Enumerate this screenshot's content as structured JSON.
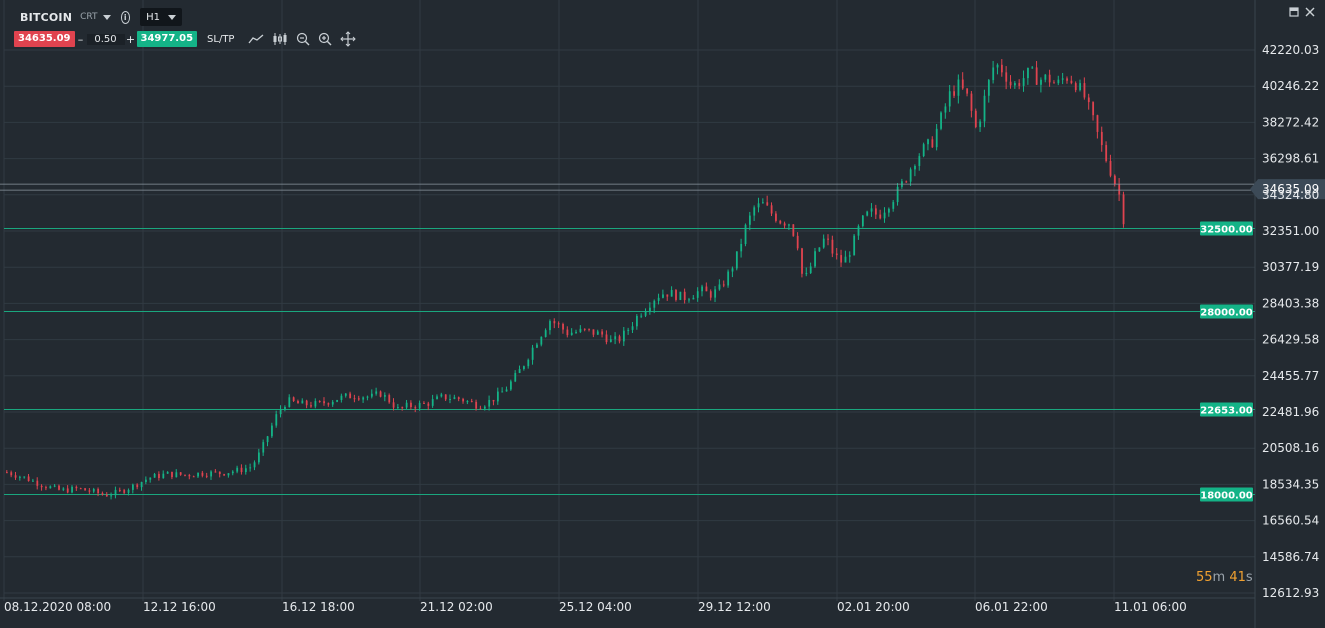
{
  "symbol": {
    "name": "BITCOIN",
    "type": "CRT",
    "timeframe": "H1"
  },
  "trade": {
    "sell_price": "34635.09",
    "quantity": "0.50",
    "buy_price": "34977.05",
    "minus": "–",
    "plus": "+",
    "sltp_label": "SL/TP"
  },
  "icons": [
    "line-chart-icon",
    "candles-icon",
    "zoom-out-icon",
    "zoom-in-icon",
    "crosshair-icon",
    "minimize-icon",
    "close-icon",
    "info-icon",
    "dropdown-caret-icon"
  ],
  "timer": {
    "minutes": "55",
    "m_unit": "m",
    "seconds": "41",
    "s_unit": "s"
  },
  "colors": {
    "background": "#232a31",
    "grid": "#313a42",
    "up": "#14b387",
    "down": "#e0434f",
    "level": "#1aa67e",
    "axis_text": "#e6e9ec",
    "timer": "#f0a030"
  },
  "chart_data": {
    "type": "candlestick",
    "title": "",
    "ylim": [
      12612.93,
      43000
    ],
    "y_ticks": [
      "42220.03",
      "40246.22",
      "38272.42",
      "36298.61",
      "34324.80",
      "32351.00",
      "30377.19",
      "28403.38",
      "26429.58",
      "24455.77",
      "22481.96",
      "20508.16",
      "18534.35",
      "16560.54",
      "14586.74",
      "12612.93"
    ],
    "x_ticks": [
      "08.12.2020 08:00",
      "12.12 16:00",
      "16.12 18:00",
      "21.12 02:00",
      "25.12 04:00",
      "29.12 12:00",
      "02.01 20:00",
      "06.01 22:00",
      "11.01 06:00"
    ],
    "current_price": {
      "value": 34635.09,
      "label": "34635.09"
    },
    "levels": [
      {
        "value": 32500,
        "label": "32500.00"
      },
      {
        "value": 28000,
        "label": "28000.00"
      },
      {
        "value": 22653,
        "label": "22653.00"
      },
      {
        "value": 18000,
        "label": "18000.00"
      }
    ],
    "price_path": [
      [
        0,
        19200
      ],
      [
        4,
        18900
      ],
      [
        8,
        18500
      ],
      [
        12,
        18200
      ],
      [
        16,
        18300
      ],
      [
        20,
        18100
      ],
      [
        22,
        17950
      ],
      [
        25,
        18100
      ],
      [
        28,
        18400
      ],
      [
        32,
        18900
      ],
      [
        36,
        19100
      ],
      [
        40,
        19050
      ],
      [
        44,
        19150
      ],
      [
        48,
        19150
      ],
      [
        52,
        19300
      ],
      [
        55,
        19500
      ],
      [
        57,
        20300
      ],
      [
        59,
        21400
      ],
      [
        61,
        22500
      ],
      [
        63,
        23100
      ],
      [
        66,
        22900
      ],
      [
        70,
        22900
      ],
      [
        74,
        23200
      ],
      [
        78,
        23400
      ],
      [
        82,
        23300
      ],
      [
        84,
        23500
      ],
      [
        86,
        23100
      ],
      [
        88,
        22600
      ],
      [
        90,
        22800
      ],
      [
        94,
        22900
      ],
      [
        98,
        23300
      ],
      [
        102,
        23200
      ],
      [
        104,
        23000
      ],
      [
        106,
        22850
      ],
      [
        108,
        23000
      ],
      [
        110,
        23300
      ],
      [
        112,
        23700
      ],
      [
        114,
        24300
      ],
      [
        116,
        25000
      ],
      [
        118,
        25900
      ],
      [
        120,
        26700
      ],
      [
        122,
        27500
      ],
      [
        124,
        27200
      ],
      [
        126,
        26800
      ],
      [
        130,
        26900
      ],
      [
        134,
        26700
      ],
      [
        136,
        26300
      ],
      [
        138,
        26500
      ],
      [
        140,
        27100
      ],
      [
        142,
        27800
      ],
      [
        144,
        28300
      ],
      [
        146,
        28800
      ],
      [
        148,
        29000
      ],
      [
        150,
        28900
      ],
      [
        152,
        28700
      ],
      [
        154,
        28900
      ],
      [
        156,
        29100
      ],
      [
        158,
        28900
      ],
      [
        160,
        29100
      ],
      [
        162,
        29900
      ],
      [
        164,
        30900
      ],
      [
        166,
        32500
      ],
      [
        168,
        33600
      ],
      [
        170,
        33800
      ],
      [
        172,
        33300
      ],
      [
        174,
        32900
      ],
      [
        176,
        32800
      ],
      [
        178,
        31500
      ],
      [
        179,
        29500
      ],
      [
        180,
        30000
      ],
      [
        182,
        31200
      ],
      [
        184,
        32000
      ],
      [
        186,
        31000
      ],
      [
        188,
        30600
      ],
      [
        190,
        31500
      ],
      [
        192,
        32800
      ],
      [
        194,
        33400
      ],
      [
        196,
        33200
      ],
      [
        198,
        33800
      ],
      [
        200,
        34400
      ],
      [
        202,
        35200
      ],
      [
        204,
        36200
      ],
      [
        206,
        36800
      ],
      [
        208,
        37200
      ],
      [
        210,
        38500
      ],
      [
        212,
        39800
      ],
      [
        214,
        40300
      ],
      [
        216,
        39600
      ],
      [
        218,
        37800
      ],
      [
        220,
        39800
      ],
      [
        222,
        41500
      ],
      [
        224,
        41100
      ],
      [
        226,
        40200
      ],
      [
        228,
        40600
      ],
      [
        230,
        41000
      ],
      [
        232,
        40600
      ],
      [
        234,
        40700
      ],
      [
        236,
        40300
      ],
      [
        238,
        40800
      ],
      [
        240,
        40500
      ],
      [
        242,
        39800
      ],
      [
        244,
        38500
      ],
      [
        246,
        37000
      ],
      [
        248,
        35700
      ],
      [
        250,
        34400
      ],
      [
        251,
        33000
      ],
      [
        252,
        34500
      ]
    ]
  }
}
